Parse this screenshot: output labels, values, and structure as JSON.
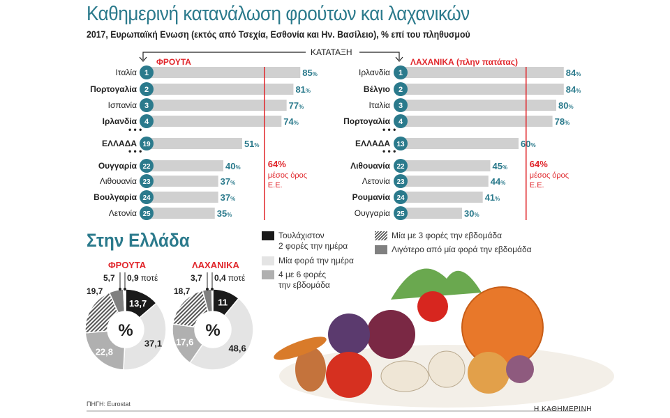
{
  "title": "Καθημερινή κατανάλωση φρούτων και λαχανικών",
  "subtitle": "2017, Ευρωπαϊκή Ενωση (εκτός από Τσεχία, Εσθονία και Ην. Βασίλειο), % επί του πληθυσμού",
  "ranking_label": "ΚΑΤΑΤΑΞΗ",
  "source": "ΠΗΓΗ: Eurostat",
  "brand": "Η ΚΑΘΗΜΕΡΙΝΗ",
  "greece_title": "Στην Ελλάδα",
  "colors": {
    "teal": "#2b7a8c",
    "red": "#e0262b",
    "bar": "#d0d0d0",
    "black": "#1a1a1a",
    "light": "#e4e4e4",
    "mid": "#b0b0b0",
    "dark": "#808080"
  },
  "chart_data": [
    {
      "type": "bar",
      "orientation": "horizontal",
      "title": "ΦΡΟΥΤΑ",
      "unit": "%",
      "rows": [
        {
          "rank": "1",
          "country": "Ιταλία",
          "value": 85
        },
        {
          "rank": "2",
          "country": "Πορτογαλία",
          "value": 81
        },
        {
          "rank": "3",
          "country": "Ισπανία",
          "value": 77
        },
        {
          "rank": "4",
          "country": "Ιρλανδία",
          "value": 74
        },
        {
          "rank": "19",
          "country": "ΕΛΛΑΔΑ",
          "value": 51
        },
        {
          "rank": "22",
          "country": "Ουγγαρία",
          "value": 40
        },
        {
          "rank": "23",
          "country": "Λιθουανία",
          "value": 37
        },
        {
          "rank": "24",
          "country": "Βουλγαρία",
          "value": 37
        },
        {
          "rank": "25",
          "country": "Λετονία",
          "value": 35
        }
      ],
      "reference": {
        "value": 64,
        "label1": "64%",
        "label2": "μέσος όρος",
        "label3": "Ε.Ε."
      }
    },
    {
      "type": "bar",
      "orientation": "horizontal",
      "title": "ΛΑΧΑΝΙΚΑ (πλην πατάτας)",
      "unit": "%",
      "rows": [
        {
          "rank": "1",
          "country": "Ιρλανδία",
          "value": 84
        },
        {
          "rank": "2",
          "country": "Βέλγιο",
          "value": 84
        },
        {
          "rank": "3",
          "country": "Ιταλία",
          "value": 80
        },
        {
          "rank": "4",
          "country": "Πορτογαλία",
          "value": 78
        },
        {
          "rank": "13",
          "country": "ΕΛΛΑΔΑ",
          "value": 60
        },
        {
          "rank": "22",
          "country": "Λιθουανία",
          "value": 45
        },
        {
          "rank": "23",
          "country": "Λετονία",
          "value": 44
        },
        {
          "rank": "24",
          "country": "Ρουμανία",
          "value": 41
        },
        {
          "rank": "25",
          "country": "Ουγγαρία",
          "value": 30
        }
      ],
      "reference": {
        "value": 64,
        "label1": "64%",
        "label2": "μέσος όρος",
        "label3": "Ε.Ε."
      }
    },
    {
      "type": "pie",
      "donut": true,
      "title": "ΦΡΟΥΤΑ",
      "center_label": "%",
      "slices": [
        {
          "key": "twice_daily",
          "value": 13.7,
          "label": "13,7"
        },
        {
          "key": "once_daily",
          "value": 37.1,
          "label": "37,1"
        },
        {
          "key": "four_six_week",
          "value": 22.8,
          "label": "22,8"
        },
        {
          "key": "one_three_week",
          "value": 19.7,
          "label": "19,7"
        },
        {
          "key": "less_weekly",
          "value": 5.7,
          "label": "5,7"
        },
        {
          "key": "never",
          "value": 0.9,
          "label": "0,9"
        }
      ],
      "never_label": "ποτέ"
    },
    {
      "type": "pie",
      "donut": true,
      "title": "ΛΑΧΑΝΙΚΑ",
      "center_label": "%",
      "slices": [
        {
          "key": "twice_daily",
          "value": 11,
          "label": "11"
        },
        {
          "key": "once_daily",
          "value": 48.6,
          "label": "48,6"
        },
        {
          "key": "four_six_week",
          "value": 17.6,
          "label": "17,6"
        },
        {
          "key": "one_three_week",
          "value": 18.7,
          "label": "18,7"
        },
        {
          "key": "less_weekly",
          "value": 3.7,
          "label": "3,7"
        },
        {
          "key": "never",
          "value": 0.4,
          "label": "0,4"
        }
      ],
      "never_label": "ποτέ"
    }
  ],
  "legend": [
    {
      "key": "twice_daily",
      "label": "Τουλάχιστον 2 φορές την ημέρα",
      "line1": "Τουλάχιστον",
      "line2": "2 φορές την ημέρα"
    },
    {
      "key": "once_daily",
      "label": "Μία φορά την ημέρα",
      "line1": "Μία φορά την ημέρα",
      "line2": ""
    },
    {
      "key": "four_six_week",
      "label": "4 με 6 φορές την εβδομάδα",
      "line1": "4 με 6 φορές",
      "line2": "την εβδομάδα"
    },
    {
      "key": "one_three_week",
      "label": "Μία με 3 φορές την εβδομάδα",
      "line1": "Μία με 3 φορές την εβδομάδα",
      "line2": ""
    },
    {
      "key": "less_weekly",
      "label": "Λιγότερο από μία φορά την εβδομάδα",
      "line1": "Λιγότερο από μία φορά την εβδομάδα",
      "line2": ""
    }
  ]
}
